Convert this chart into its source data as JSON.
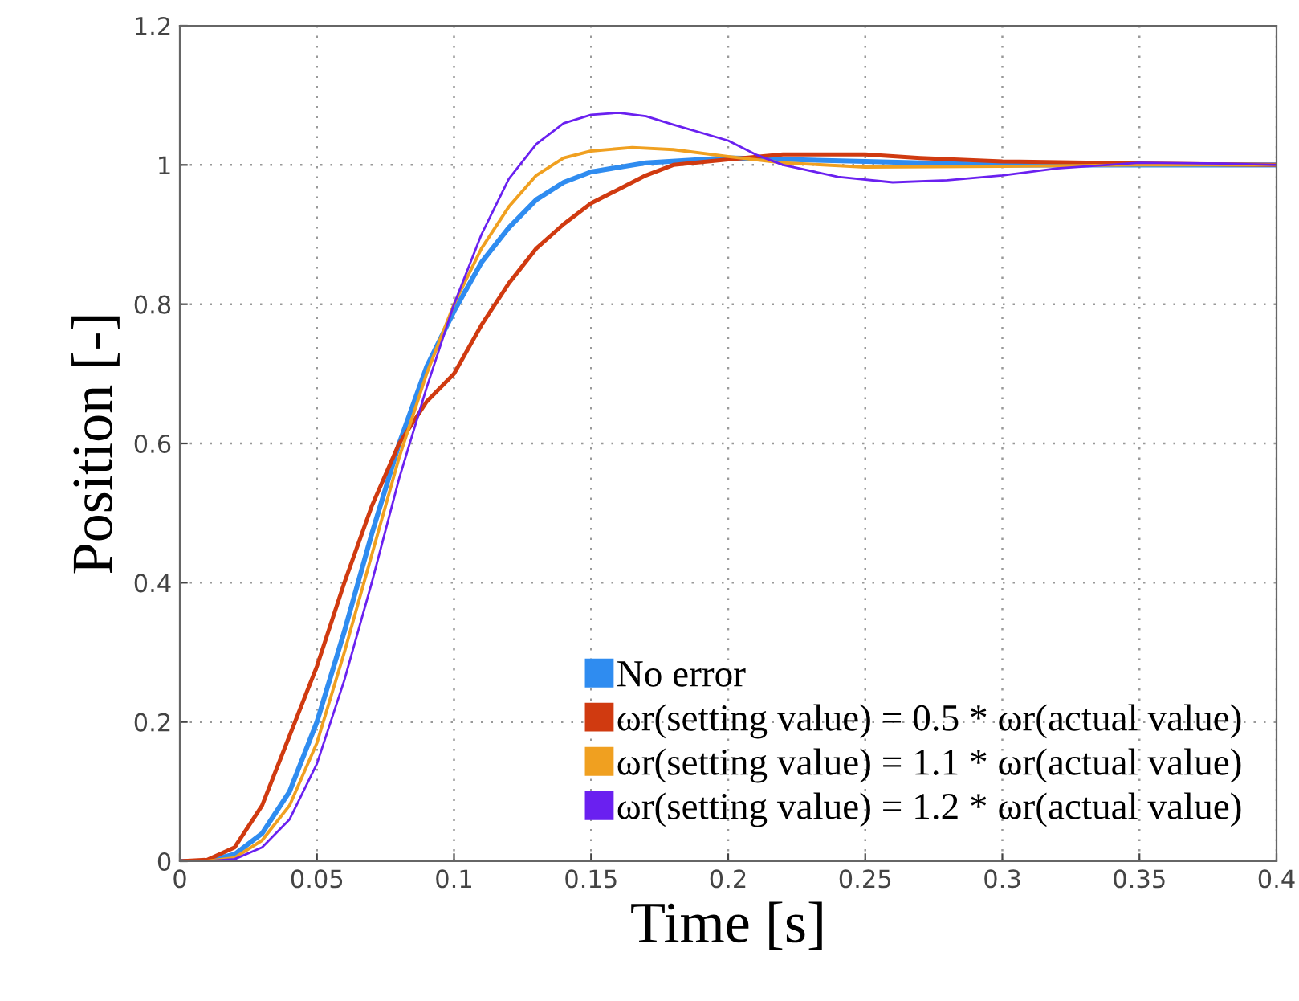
{
  "chart_data": {
    "type": "line",
    "xlabel": "Time [s]",
    "ylabel": "Position [-]",
    "xlim": [
      0,
      0.4
    ],
    "ylim": [
      0,
      1.2
    ],
    "xticks": [
      0,
      0.05,
      0.1,
      0.15,
      0.2,
      0.25,
      0.3,
      0.35,
      0.4
    ],
    "yticks": [
      0,
      0.2,
      0.4,
      0.6,
      0.8,
      1,
      1.2
    ],
    "grid": true,
    "legend": "bottom right",
    "marker": "none",
    "line_style": "solid",
    "series": [
      {
        "name": "No error",
        "color": "#2f8cf0",
        "x": [
          0,
          0.01,
          0.02,
          0.03,
          0.04,
          0.05,
          0.06,
          0.07,
          0.08,
          0.09,
          0.1,
          0.11,
          0.12,
          0.13,
          0.14,
          0.15,
          0.17,
          0.2,
          0.25,
          0.3,
          0.4
        ],
        "values": [
          0,
          0,
          0.01,
          0.04,
          0.1,
          0.2,
          0.33,
          0.47,
          0.6,
          0.71,
          0.79,
          0.86,
          0.91,
          0.95,
          0.975,
          0.99,
          1.003,
          1.01,
          1.005,
          1.0,
          1.0
        ]
      },
      {
        "name": "ωr(setting value) = 0.5 * ωr(actual value)",
        "color": "#d03a10",
        "x": [
          0,
          0.01,
          0.02,
          0.03,
          0.04,
          0.05,
          0.06,
          0.07,
          0.08,
          0.09,
          0.1,
          0.11,
          0.12,
          0.13,
          0.14,
          0.15,
          0.16,
          0.17,
          0.18,
          0.2,
          0.22,
          0.25,
          0.27,
          0.3,
          0.35,
          0.4
        ],
        "values": [
          0,
          0.002,
          0.02,
          0.08,
          0.18,
          0.28,
          0.4,
          0.51,
          0.6,
          0.66,
          0.7,
          0.77,
          0.83,
          0.88,
          0.915,
          0.945,
          0.965,
          0.985,
          1.0,
          1.008,
          1.015,
          1.015,
          1.01,
          1.005,
          1.002,
          1.0
        ]
      },
      {
        "name": "ωr(setting value) = 1.1 * ωr(actual value)",
        "color": "#f0a020",
        "x": [
          0,
          0.01,
          0.02,
          0.03,
          0.04,
          0.05,
          0.06,
          0.07,
          0.08,
          0.09,
          0.1,
          0.11,
          0.12,
          0.13,
          0.14,
          0.15,
          0.165,
          0.18,
          0.2,
          0.22,
          0.25,
          0.3,
          0.35,
          0.4
        ],
        "values": [
          0,
          0,
          0.005,
          0.03,
          0.08,
          0.17,
          0.3,
          0.44,
          0.58,
          0.7,
          0.8,
          0.88,
          0.94,
          0.985,
          1.01,
          1.02,
          1.025,
          1.022,
          1.012,
          1.003,
          0.997,
          0.998,
          1.0,
          1.0
        ]
      },
      {
        "name": "ωr(setting value) = 1.2 * ωr(actual value)",
        "color": "#6a20f0",
        "x": [
          0,
          0.01,
          0.02,
          0.03,
          0.04,
          0.05,
          0.06,
          0.07,
          0.08,
          0.09,
          0.1,
          0.11,
          0.12,
          0.13,
          0.14,
          0.15,
          0.16,
          0.17,
          0.18,
          0.2,
          0.21,
          0.22,
          0.24,
          0.26,
          0.28,
          0.3,
          0.32,
          0.35,
          0.38,
          0.4
        ],
        "values": [
          0,
          0,
          0.003,
          0.02,
          0.06,
          0.14,
          0.26,
          0.4,
          0.55,
          0.68,
          0.8,
          0.9,
          0.98,
          1.03,
          1.06,
          1.072,
          1.075,
          1.07,
          1.058,
          1.035,
          1.015,
          1.0,
          0.983,
          0.975,
          0.978,
          0.985,
          0.995,
          1.003,
          1.002,
          1.0
        ]
      }
    ]
  }
}
